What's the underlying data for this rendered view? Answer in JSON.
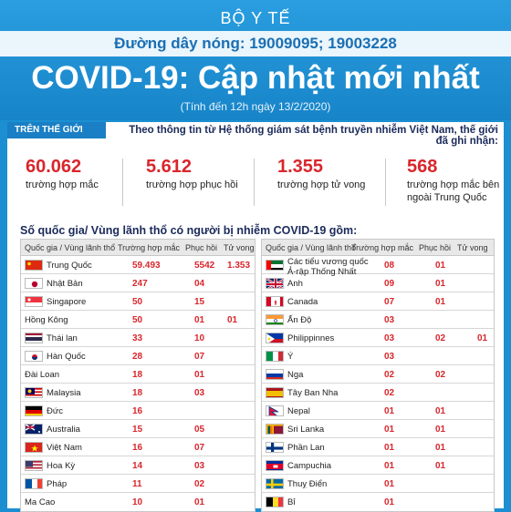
{
  "header": {
    "ministry": "BỘ Y TẾ",
    "hotline": "Đường dây nóng: 19009095; 19003228",
    "title": "COVID-19: Cập nhật mới nhất",
    "subtitle": "(Tính đến 12h ngày 13/2/2020)"
  },
  "world": {
    "tag": "TRÊN THẾ GIỚI",
    "intro": "Theo thông tin từ Hệ thống giám sát bệnh truyền nhiễm Việt Nam, thế giới đã ghi nhận:",
    "stats": [
      {
        "value": "60.062",
        "label": "trường hợp mắc"
      },
      {
        "value": "5.612",
        "label": "trường hợp phục hồi"
      },
      {
        "value": "1.355",
        "label": "trường hợp tử vong"
      },
      {
        "value": "568",
        "label": "trường hợp mắc bên ngoài Trung Quốc"
      }
    ]
  },
  "countries_title": "Số quốc gia/ Vùng lãnh thổ có người bị nhiễm COVID-19 gồm:",
  "columns": {
    "country": "Quốc gia / Vùng lãnh thổ",
    "cases": "Trường hợp mắc",
    "recovered": "Phục hồi",
    "deaths": "Tử vong"
  },
  "left_table": [
    {
      "name": "Trung Quốc",
      "flag": "china-flag",
      "cases": "59.493",
      "recovered": "5542",
      "deaths": "1.353"
    },
    {
      "name": "Nhật Bản",
      "flag": "japan-flag",
      "cases": "247",
      "recovered": "04",
      "deaths": ""
    },
    {
      "name": "Singapore",
      "flag": "singapore-flag",
      "cases": "50",
      "recovered": "15",
      "deaths": ""
    },
    {
      "name": "Hồng Kông",
      "flag": "",
      "cases": "50",
      "recovered": "01",
      "deaths": "01"
    },
    {
      "name": "Thái lan",
      "flag": "thailand-flag",
      "cases": "33",
      "recovered": "10",
      "deaths": ""
    },
    {
      "name": "Hàn Quốc",
      "flag": "korea-flag",
      "cases": "28",
      "recovered": "07",
      "deaths": ""
    },
    {
      "name": "Đài Loan",
      "flag": "",
      "cases": "18",
      "recovered": "01",
      "deaths": ""
    },
    {
      "name": "Malaysia",
      "flag": "malaysia-flag",
      "cases": "18",
      "recovered": "03",
      "deaths": ""
    },
    {
      "name": "Đức",
      "flag": "germany-flag",
      "cases": "16",
      "recovered": "",
      "deaths": ""
    },
    {
      "name": "Australia",
      "flag": "australia-flag",
      "cases": "15",
      "recovered": "05",
      "deaths": ""
    },
    {
      "name": "Việt Nam",
      "flag": "vietnam-flag",
      "cases": "16",
      "recovered": "07",
      "deaths": ""
    },
    {
      "name": "Hoa Kỳ",
      "flag": "usa-flag",
      "cases": "14",
      "recovered": "03",
      "deaths": ""
    },
    {
      "name": "Pháp",
      "flag": "france-flag",
      "cases": "11",
      "recovered": "02",
      "deaths": ""
    },
    {
      "name": "Ma Cao",
      "flag": "",
      "cases": "10",
      "recovered": "01",
      "deaths": ""
    }
  ],
  "right_table": [
    {
      "name": "Các tiểu vương quốc Ả-rập Thống Nhất",
      "flag": "uae-flag",
      "cases": "08",
      "recovered": "01",
      "deaths": ""
    },
    {
      "name": "Anh",
      "flag": "uk-flag",
      "cases": "09",
      "recovered": "01",
      "deaths": ""
    },
    {
      "name": "Canada",
      "flag": "canada-flag",
      "cases": "07",
      "recovered": "01",
      "deaths": ""
    },
    {
      "name": "Ấn Độ",
      "flag": "india-flag",
      "cases": "03",
      "recovered": "",
      "deaths": ""
    },
    {
      "name": "Philippinnes",
      "flag": "philippines-flag",
      "cases": "03",
      "recovered": "02",
      "deaths": "01"
    },
    {
      "name": "Ý",
      "flag": "italy-flag",
      "cases": "03",
      "recovered": "",
      "deaths": ""
    },
    {
      "name": "Nga",
      "flag": "russia-flag",
      "cases": "02",
      "recovered": "02",
      "deaths": ""
    },
    {
      "name": "Tây Ban Nha",
      "flag": "spain-flag",
      "cases": "02",
      "recovered": "",
      "deaths": ""
    },
    {
      "name": "Nepal",
      "flag": "nepal-flag",
      "cases": "01",
      "recovered": "01",
      "deaths": ""
    },
    {
      "name": "Sri Lanka",
      "flag": "srilanka-flag",
      "cases": "01",
      "recovered": "01",
      "deaths": ""
    },
    {
      "name": "Phần Lan",
      "flag": "finland-flag",
      "cases": "01",
      "recovered": "01",
      "deaths": ""
    },
    {
      "name": "Campuchia",
      "flag": "cambodia-flag",
      "cases": "01",
      "recovered": "01",
      "deaths": ""
    },
    {
      "name": "Thuỵ Điển",
      "flag": "sweden-flag",
      "cases": "01",
      "recovered": "",
      "deaths": ""
    },
    {
      "name": "Bỉ",
      "flag": "belgium-flag",
      "cases": "01",
      "recovered": "",
      "deaths": ""
    }
  ],
  "colors": {
    "background": "#1b8fd2",
    "accent_red": "#d9262c",
    "title_navy": "#1a2a5a"
  }
}
